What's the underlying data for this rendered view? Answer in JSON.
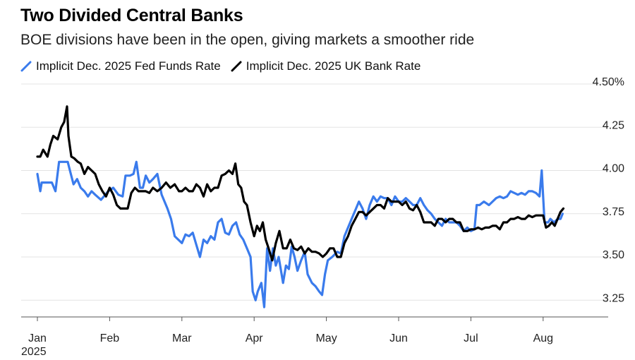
{
  "chart_data": {
    "type": "line",
    "title": "Two Divided Central Banks",
    "subtitle": "BOE divisions have been in the open, giving markets a smoother ride",
    "xlabel": "",
    "ylabel": "",
    "ylim": [
      3.22,
      4.5
    ],
    "y_ticks": [
      {
        "value": 4.5,
        "label": "4.50%"
      },
      {
        "value": 4.25,
        "label": "4.25"
      },
      {
        "value": 4.0,
        "label": "4.00"
      },
      {
        "value": 3.75,
        "label": "3.75"
      },
      {
        "value": 3.5,
        "label": "3.50"
      },
      {
        "value": 3.25,
        "label": "3.25"
      }
    ],
    "x_ticks": [
      {
        "t": 0,
        "label": "Jan",
        "sublabel": "2025"
      },
      {
        "t": 1,
        "label": "Feb"
      },
      {
        "t": 2,
        "label": "Mar"
      },
      {
        "t": 3,
        "label": "Apr"
      },
      {
        "t": 4,
        "label": "May"
      },
      {
        "t": 5,
        "label": "Jun"
      },
      {
        "t": 6,
        "label": "Jul"
      },
      {
        "t": 7,
        "label": "Aug"
      }
    ],
    "xlim": [
      0,
      7.31
    ],
    "legend_position": "top-left",
    "series": [
      {
        "name": "Implicit Dec. 2025 Fed Funds Rate",
        "color": "#3a7bec",
        "points": [
          [
            0.0,
            3.98
          ],
          [
            0.04,
            3.88
          ],
          [
            0.06,
            3.93
          ],
          [
            0.12,
            3.93
          ],
          [
            0.2,
            3.93
          ],
          [
            0.25,
            3.88
          ],
          [
            0.3,
            4.05
          ],
          [
            0.38,
            4.05
          ],
          [
            0.42,
            4.05
          ],
          [
            0.45,
            4.0
          ],
          [
            0.5,
            3.92
          ],
          [
            0.55,
            3.95
          ],
          [
            0.6,
            3.9
          ],
          [
            0.65,
            3.88
          ],
          [
            0.7,
            3.85
          ],
          [
            0.75,
            3.88
          ],
          [
            0.8,
            3.86
          ],
          [
            0.88,
            3.83
          ],
          [
            0.92,
            3.85
          ],
          [
            0.98,
            3.88
          ],
          [
            1.05,
            3.9
          ],
          [
            1.12,
            3.86
          ],
          [
            1.18,
            3.85
          ],
          [
            1.22,
            3.97
          ],
          [
            1.28,
            3.97
          ],
          [
            1.33,
            3.98
          ],
          [
            1.37,
            4.05
          ],
          [
            1.42,
            3.9
          ],
          [
            1.46,
            3.9
          ],
          [
            1.5,
            3.97
          ],
          [
            1.55,
            3.93
          ],
          [
            1.6,
            3.95
          ],
          [
            1.66,
            3.98
          ],
          [
            1.72,
            3.86
          ],
          [
            1.8,
            3.78
          ],
          [
            1.85,
            3.72
          ],
          [
            1.9,
            3.62
          ],
          [
            1.95,
            3.6
          ],
          [
            2.0,
            3.58
          ],
          [
            2.05,
            3.63
          ],
          [
            2.1,
            3.62
          ],
          [
            2.15,
            3.64
          ],
          [
            2.2,
            3.57
          ],
          [
            2.25,
            3.5
          ],
          [
            2.3,
            3.6
          ],
          [
            2.35,
            3.58
          ],
          [
            2.4,
            3.62
          ],
          [
            2.45,
            3.6
          ],
          [
            2.5,
            3.7
          ],
          [
            2.55,
            3.72
          ],
          [
            2.6,
            3.64
          ],
          [
            2.65,
            3.63
          ],
          [
            2.7,
            3.68
          ],
          [
            2.75,
            3.7
          ],
          [
            2.8,
            3.63
          ],
          [
            2.85,
            3.6
          ],
          [
            2.9,
            3.55
          ],
          [
            2.95,
            3.5
          ],
          [
            2.98,
            3.3
          ],
          [
            3.02,
            3.25
          ],
          [
            3.05,
            3.3
          ],
          [
            3.1,
            3.35
          ],
          [
            3.14,
            3.21
          ],
          [
            3.18,
            3.55
          ],
          [
            3.22,
            3.42
          ],
          [
            3.26,
            3.55
          ],
          [
            3.3,
            3.45
          ],
          [
            3.34,
            3.5
          ],
          [
            3.4,
            3.35
          ],
          [
            3.44,
            3.45
          ],
          [
            3.48,
            3.43
          ],
          [
            3.52,
            3.56
          ],
          [
            3.56,
            3.5
          ],
          [
            3.6,
            3.42
          ],
          [
            3.65,
            3.48
          ],
          [
            3.7,
            3.53
          ],
          [
            3.74,
            3.4
          ],
          [
            3.8,
            3.35
          ],
          [
            3.85,
            3.33
          ],
          [
            3.9,
            3.3
          ],
          [
            3.94,
            3.28
          ],
          [
            3.98,
            3.4
          ],
          [
            4.02,
            3.48
          ],
          [
            4.08,
            3.5
          ],
          [
            4.15,
            3.53
          ],
          [
            4.2,
            3.52
          ],
          [
            4.25,
            3.62
          ],
          [
            4.3,
            3.67
          ],
          [
            4.35,
            3.72
          ],
          [
            4.4,
            3.77
          ],
          [
            4.45,
            3.82
          ],
          [
            4.5,
            3.78
          ],
          [
            4.55,
            3.72
          ],
          [
            4.6,
            3.8
          ],
          [
            4.65,
            3.85
          ],
          [
            4.7,
            3.82
          ],
          [
            4.75,
            3.85
          ],
          [
            4.8,
            3.84
          ],
          [
            4.85,
            3.84
          ],
          [
            4.9,
            3.8
          ],
          [
            4.95,
            3.85
          ],
          [
            5.0,
            3.82
          ],
          [
            5.05,
            3.82
          ],
          [
            5.1,
            3.84
          ],
          [
            5.15,
            3.82
          ],
          [
            5.2,
            3.8
          ],
          [
            5.25,
            3.8
          ],
          [
            5.3,
            3.84
          ],
          [
            5.35,
            3.8
          ],
          [
            5.4,
            3.77
          ],
          [
            5.45,
            3.75
          ],
          [
            5.5,
            3.72
          ],
          [
            5.55,
            3.7
          ],
          [
            5.6,
            3.68
          ],
          [
            5.65,
            3.72
          ],
          [
            5.7,
            3.7
          ],
          [
            5.75,
            3.7
          ],
          [
            5.8,
            3.7
          ],
          [
            5.85,
            3.68
          ],
          [
            5.9,
            3.65
          ],
          [
            5.95,
            3.67
          ],
          [
            6.0,
            3.65
          ],
          [
            6.05,
            3.66
          ],
          [
            6.08,
            3.8
          ],
          [
            6.12,
            3.8
          ],
          [
            6.18,
            3.82
          ],
          [
            6.25,
            3.8
          ],
          [
            6.3,
            3.82
          ],
          [
            6.35,
            3.84
          ],
          [
            6.4,
            3.85
          ],
          [
            6.45,
            3.84
          ],
          [
            6.5,
            3.85
          ],
          [
            6.55,
            3.88
          ],
          [
            6.6,
            3.87
          ],
          [
            6.65,
            3.86
          ],
          [
            6.7,
            3.87
          ],
          [
            6.75,
            3.86
          ],
          [
            6.8,
            3.88
          ],
          [
            6.85,
            3.88
          ],
          [
            6.9,
            3.87
          ],
          [
            6.95,
            3.85
          ],
          [
            6.98,
            4.0
          ],
          [
            7.02,
            3.7
          ],
          [
            7.07,
            3.7
          ],
          [
            7.1,
            3.72
          ],
          [
            7.15,
            3.7
          ],
          [
            7.2,
            3.72
          ],
          [
            7.24,
            3.72
          ],
          [
            7.27,
            3.75
          ]
        ]
      },
      {
        "name": "Implicit Dec. 2025 UK Bank Rate",
        "color": "#000000",
        "points": [
          [
            0.0,
            4.08
          ],
          [
            0.04,
            4.08
          ],
          [
            0.08,
            4.12
          ],
          [
            0.14,
            4.08
          ],
          [
            0.18,
            4.15
          ],
          [
            0.22,
            4.2
          ],
          [
            0.28,
            4.18
          ],
          [
            0.33,
            4.25
          ],
          [
            0.37,
            4.28
          ],
          [
            0.41,
            4.37
          ],
          [
            0.43,
            4.2
          ],
          [
            0.47,
            4.08
          ],
          [
            0.51,
            4.07
          ],
          [
            0.56,
            4.05
          ],
          [
            0.6,
            4.04
          ],
          [
            0.65,
            3.98
          ],
          [
            0.7,
            4.02
          ],
          [
            0.75,
            4.0
          ],
          [
            0.8,
            3.98
          ],
          [
            0.85,
            3.92
          ],
          [
            0.9,
            3.88
          ],
          [
            0.95,
            3.85
          ],
          [
            1.0,
            3.9
          ],
          [
            1.05,
            3.86
          ],
          [
            1.1,
            3.8
          ],
          [
            1.15,
            3.78
          ],
          [
            1.2,
            3.78
          ],
          [
            1.25,
            3.78
          ],
          [
            1.3,
            3.87
          ],
          [
            1.35,
            3.9
          ],
          [
            1.4,
            3.88
          ],
          [
            1.45,
            3.88
          ],
          [
            1.5,
            3.88
          ],
          [
            1.55,
            3.87
          ],
          [
            1.6,
            3.9
          ],
          [
            1.66,
            3.88
          ],
          [
            1.72,
            3.9
          ],
          [
            1.78,
            3.93
          ],
          [
            1.84,
            3.9
          ],
          [
            1.9,
            3.92
          ],
          [
            1.96,
            3.88
          ],
          [
            2.0,
            3.88
          ],
          [
            2.05,
            3.9
          ],
          [
            2.1,
            3.88
          ],
          [
            2.15,
            3.88
          ],
          [
            2.2,
            3.92
          ],
          [
            2.25,
            3.9
          ],
          [
            2.3,
            3.85
          ],
          [
            2.35,
            3.92
          ],
          [
            2.4,
            3.88
          ],
          [
            2.45,
            3.9
          ],
          [
            2.5,
            3.9
          ],
          [
            2.55,
            3.97
          ],
          [
            2.6,
            3.98
          ],
          [
            2.65,
            4.0
          ],
          [
            2.7,
            3.98
          ],
          [
            2.74,
            4.04
          ],
          [
            2.78,
            3.92
          ],
          [
            2.82,
            3.9
          ],
          [
            2.86,
            3.82
          ],
          [
            2.9,
            3.8
          ],
          [
            2.95,
            3.7
          ],
          [
            3.0,
            3.62
          ],
          [
            3.04,
            3.68
          ],
          [
            3.08,
            3.65
          ],
          [
            3.12,
            3.7
          ],
          [
            3.16,
            3.6
          ],
          [
            3.2,
            3.55
          ],
          [
            3.25,
            3.48
          ],
          [
            3.3,
            3.58
          ],
          [
            3.35,
            3.65
          ],
          [
            3.4,
            3.55
          ],
          [
            3.45,
            3.55
          ],
          [
            3.5,
            3.6
          ],
          [
            3.55,
            3.55
          ],
          [
            3.6,
            3.54
          ],
          [
            3.65,
            3.56
          ],
          [
            3.7,
            3.52
          ],
          [
            3.75,
            3.55
          ],
          [
            3.8,
            3.53
          ],
          [
            3.85,
            3.53
          ],
          [
            3.9,
            3.52
          ],
          [
            3.95,
            3.5
          ],
          [
            4.0,
            3.52
          ],
          [
            4.05,
            3.55
          ],
          [
            4.1,
            3.55
          ],
          [
            4.15,
            3.5
          ],
          [
            4.2,
            3.5
          ],
          [
            4.25,
            3.58
          ],
          [
            4.3,
            3.62
          ],
          [
            4.35,
            3.68
          ],
          [
            4.4,
            3.72
          ],
          [
            4.45,
            3.76
          ],
          [
            4.5,
            3.76
          ],
          [
            4.55,
            3.74
          ],
          [
            4.6,
            3.76
          ],
          [
            4.65,
            3.78
          ],
          [
            4.7,
            3.8
          ],
          [
            4.75,
            3.8
          ],
          [
            4.8,
            3.78
          ],
          [
            4.85,
            3.84
          ],
          [
            4.9,
            3.82
          ],
          [
            4.95,
            3.82
          ],
          [
            5.0,
            3.82
          ],
          [
            5.05,
            3.8
          ],
          [
            5.1,
            3.82
          ],
          [
            5.15,
            3.78
          ],
          [
            5.2,
            3.77
          ],
          [
            5.25,
            3.8
          ],
          [
            5.3,
            3.76
          ],
          [
            5.35,
            3.7
          ],
          [
            5.4,
            3.7
          ],
          [
            5.45,
            3.7
          ],
          [
            5.5,
            3.68
          ],
          [
            5.55,
            3.72
          ],
          [
            5.6,
            3.72
          ],
          [
            5.65,
            3.7
          ],
          [
            5.7,
            3.72
          ],
          [
            5.75,
            3.72
          ],
          [
            5.8,
            3.7
          ],
          [
            5.85,
            3.7
          ],
          [
            5.9,
            3.65
          ],
          [
            5.95,
            3.65
          ],
          [
            6.0,
            3.66
          ],
          [
            6.05,
            3.66
          ],
          [
            6.1,
            3.67
          ],
          [
            6.15,
            3.66
          ],
          [
            6.2,
            3.67
          ],
          [
            6.25,
            3.67
          ],
          [
            6.3,
            3.68
          ],
          [
            6.35,
            3.68
          ],
          [
            6.4,
            3.66
          ],
          [
            6.45,
            3.7
          ],
          [
            6.5,
            3.7
          ],
          [
            6.55,
            3.72
          ],
          [
            6.6,
            3.72
          ],
          [
            6.65,
            3.73
          ],
          [
            6.7,
            3.72
          ],
          [
            6.75,
            3.72
          ],
          [
            6.8,
            3.74
          ],
          [
            6.85,
            3.73
          ],
          [
            6.9,
            3.74
          ],
          [
            6.95,
            3.74
          ],
          [
            7.0,
            3.74
          ],
          [
            7.04,
            3.67
          ],
          [
            7.08,
            3.68
          ],
          [
            7.12,
            3.7
          ],
          [
            7.16,
            3.68
          ],
          [
            7.2,
            3.72
          ],
          [
            7.24,
            3.76
          ],
          [
            7.28,
            3.78
          ]
        ]
      }
    ]
  }
}
